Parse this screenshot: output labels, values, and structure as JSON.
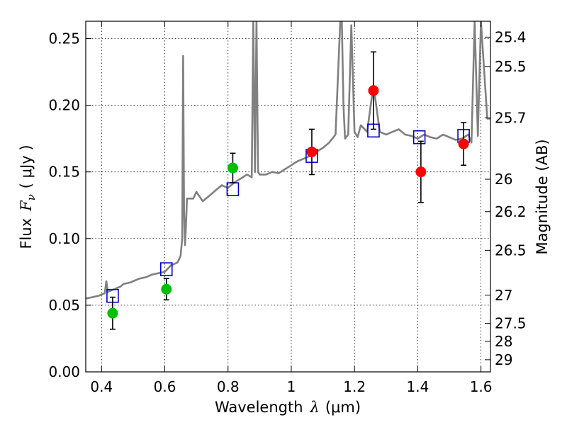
{
  "chart_data": {
    "type": "scatter",
    "xlabel_text": "Wavelength",
    "xlabel_symbol": "λ",
    "xlabel_unit": "(μm)",
    "ylabel_text": "Flux",
    "ylabel_symbol": "F",
    "ylabel_subscript": "ν",
    "ylabel_unit": "( μJy )",
    "y2label": "Magnitude (AB)",
    "xlim": [
      0.35,
      1.63
    ],
    "ylim": [
      0.0,
      0.263
    ],
    "x_ticks": [
      0.4,
      0.6,
      0.8,
      1.0,
      1.2,
      1.4,
      1.6
    ],
    "x_tick_labels": [
      "0.4",
      "0.6",
      "0.8",
      "1",
      "1.2",
      "1.4",
      "1.6"
    ],
    "y_ticks": [
      0.0,
      0.05,
      0.1,
      0.15,
      0.2,
      0.25
    ],
    "y_tick_labels": [
      "0.00",
      "0.05",
      "0.10",
      "0.15",
      "0.20",
      "0.25"
    ],
    "y2_ticks": [
      {
        "label": "25.4",
        "flux": 0.2511
      },
      {
        "label": "25.5",
        "flux": 0.2291
      },
      {
        "label": "25.7",
        "flux": 0.1905
      },
      {
        "label": "26",
        "flux": 0.1445
      },
      {
        "label": "26.2",
        "flux": 0.1202
      },
      {
        "label": "26.5",
        "flux": 0.0912
      },
      {
        "label": "27",
        "flux": 0.0575
      },
      {
        "label": "27.5",
        "flux": 0.0363
      },
      {
        "label": "28",
        "flux": 0.0229
      },
      {
        "label": "29",
        "flux": 0.0091
      }
    ],
    "grid": true,
    "colors": {
      "spectrum": "#808080",
      "green": "#00c000",
      "red": "#ff0000",
      "model": "#0000cc",
      "errorbar": "#000000"
    },
    "series": [
      {
        "kind": "spectrum_line",
        "x": [
          0.35,
          0.37,
          0.39,
          0.41,
          0.415,
          0.42,
          0.44,
          0.46,
          0.47,
          0.49,
          0.5,
          0.52,
          0.54,
          0.56,
          0.58,
          0.6,
          0.62,
          0.64,
          0.65,
          0.655,
          0.658,
          0.661,
          0.664,
          0.667,
          0.67,
          0.69,
          0.7,
          0.72,
          0.74,
          0.76,
          0.78,
          0.8,
          0.82,
          0.84,
          0.86,
          0.875,
          0.88,
          0.885,
          0.89,
          0.895,
          0.9,
          0.92,
          0.94,
          0.96,
          0.98,
          1.0,
          1.02,
          1.04,
          1.06,
          1.08,
          1.1,
          1.12,
          1.14,
          1.155,
          1.16,
          1.165,
          1.17,
          1.18,
          1.19,
          1.2,
          1.21,
          1.22,
          1.24,
          1.26,
          1.28,
          1.3,
          1.32,
          1.34,
          1.36,
          1.38,
          1.4,
          1.42,
          1.44,
          1.46,
          1.48,
          1.5,
          1.52,
          1.54,
          1.56,
          1.57,
          1.58,
          1.59,
          1.6,
          1.62,
          1.63
        ],
        "values": [
          0.055,
          0.056,
          0.057,
          0.059,
          0.068,
          0.06,
          0.062,
          0.064,
          0.066,
          0.067,
          0.068,
          0.07,
          0.071,
          0.073,
          0.074,
          0.075,
          0.08,
          0.082,
          0.087,
          0.1,
          0.237,
          0.12,
          0.095,
          0.11,
          0.13,
          0.13,
          0.135,
          0.128,
          0.132,
          0.136,
          0.14,
          0.138,
          0.142,
          0.145,
          0.148,
          0.146,
          0.263,
          0.15,
          0.263,
          0.15,
          0.148,
          0.148,
          0.15,
          0.149,
          0.152,
          0.155,
          0.158,
          0.16,
          0.162,
          0.165,
          0.168,
          0.172,
          0.178,
          0.263,
          0.263,
          0.2,
          0.175,
          0.178,
          0.26,
          0.18,
          0.176,
          0.185,
          0.18,
          0.215,
          0.18,
          0.178,
          0.18,
          0.182,
          0.178,
          0.177,
          0.175,
          0.178,
          0.176,
          0.175,
          0.178,
          0.176,
          0.174,
          0.175,
          0.178,
          0.172,
          0.263,
          0.177,
          0.263,
          0.19,
          0.19
        ]
      },
      {
        "kind": "points_green",
        "x": [
          0.435,
          0.605,
          0.815
        ],
        "values": [
          0.044,
          0.062,
          0.153
        ],
        "err": [
          0.012,
          0.008,
          0.011
        ]
      },
      {
        "kind": "points_red",
        "x": [
          1.065,
          1.26,
          1.41,
          1.545
        ],
        "values": [
          0.165,
          0.211,
          0.15,
          0.171
        ],
        "err": [
          0.017,
          0.029,
          0.023,
          0.016
        ]
      },
      {
        "kind": "model_squares",
        "x": [
          0.435,
          0.605,
          0.815,
          1.065,
          1.26,
          1.405,
          1.545
        ],
        "values": [
          0.057,
          0.077,
          0.137,
          0.162,
          0.181,
          0.176,
          0.177
        ]
      }
    ]
  }
}
